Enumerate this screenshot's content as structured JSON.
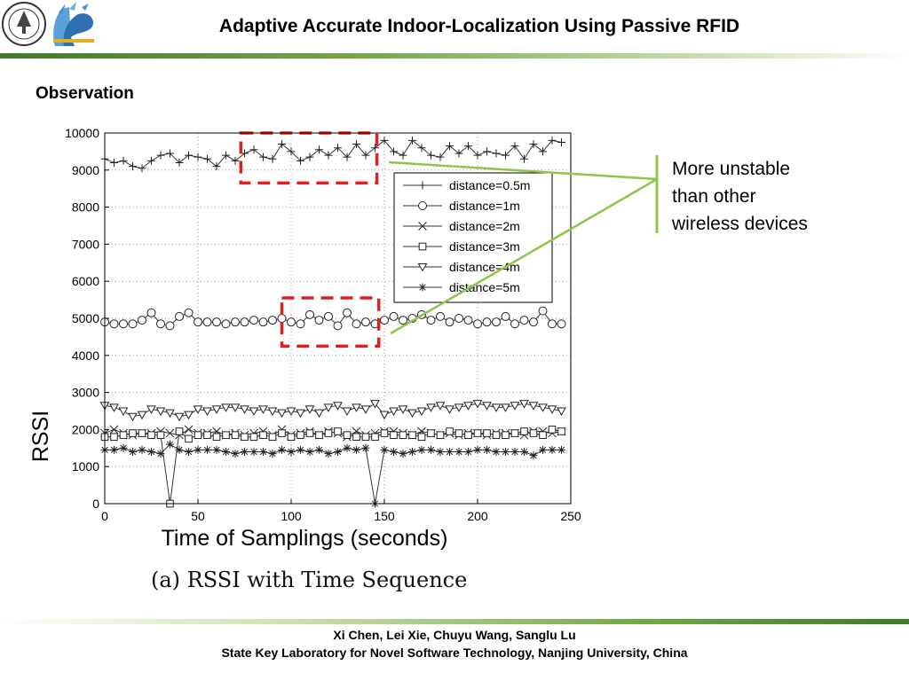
{
  "header": {
    "title": "Adaptive Accurate Indoor-Localization Using Passive RFID"
  },
  "section_title": "Observation",
  "callout": {
    "lines": [
      "More unstable",
      "than other",
      "wireless devices"
    ],
    "color": "#8dc44a"
  },
  "caption": "(a)  RSSI  with  Time  Sequence",
  "footer": {
    "authors": "Xi Chen, Lei Xie, Chuyu Wang, Sanglu Lu",
    "affiliation": "State Key Laboratory for Novel Software Technology,  Nanjing University, China"
  },
  "highlight_color": "#e02020",
  "chart_data": {
    "type": "line",
    "xlabel": "Time of Samplings (seconds)",
    "ylabel": "RSSI",
    "xlim": [
      0,
      250
    ],
    "ylim": [
      0,
      10000
    ],
    "xticks": [
      0,
      50,
      100,
      150,
      200,
      250
    ],
    "yticks": [
      0,
      1000,
      2000,
      3000,
      4000,
      5000,
      6000,
      7000,
      8000,
      9000,
      10000
    ],
    "grid": true,
    "legend_position": "upper-right",
    "x": [
      0,
      5,
      10,
      15,
      20,
      25,
      30,
      35,
      40,
      45,
      50,
      55,
      60,
      65,
      70,
      75,
      80,
      85,
      90,
      95,
      100,
      105,
      110,
      115,
      120,
      125,
      130,
      135,
      140,
      145,
      150,
      155,
      160,
      165,
      170,
      175,
      180,
      185,
      190,
      195,
      200,
      205,
      210,
      215,
      220,
      225,
      230,
      235,
      240,
      245
    ],
    "series": [
      {
        "name": "distance=0.5m",
        "marker": "+",
        "values": [
          9300,
          9200,
          9250,
          9100,
          9050,
          9250,
          9400,
          9450,
          9200,
          9400,
          9350,
          9300,
          9100,
          9400,
          9250,
          9450,
          9550,
          9350,
          9300,
          9700,
          9500,
          9250,
          9350,
          9550,
          9400,
          9600,
          9350,
          9700,
          9400,
          9600,
          9800,
          9500,
          9400,
          9800,
          9600,
          9400,
          9350,
          9650,
          9450,
          9650,
          9400,
          9500,
          9450,
          9400,
          9650,
          9300,
          9700,
          9500,
          9800,
          9750
        ]
      },
      {
        "name": "distance=1m",
        "marker": "o",
        "values": [
          4900,
          4850,
          4850,
          4850,
          4950,
          5150,
          4850,
          4800,
          5050,
          5150,
          4900,
          4900,
          4900,
          4850,
          4900,
          4900,
          4950,
          4900,
          4950,
          5000,
          4900,
          4850,
          5100,
          4950,
          5050,
          4800,
          5150,
          4850,
          4900,
          4850,
          4950,
          5050,
          4950,
          5000,
          5100,
          4950,
          5050,
          4900,
          5000,
          4950,
          4850,
          4900,
          4900,
          5050,
          4850,
          4950,
          4900,
          5200,
          4850,
          4850
        ]
      },
      {
        "name": "distance=2m",
        "marker": "x",
        "values": [
          1900,
          2000,
          1900,
          1850,
          1900,
          1900,
          1950,
          1900,
          1850,
          2000,
          1900,
          1900,
          1950,
          1850,
          1900,
          1850,
          1900,
          1950,
          1850,
          2000,
          1850,
          1900,
          1950,
          1850,
          1950,
          1900,
          1800,
          1950,
          1850,
          1900,
          1950,
          1950,
          1900,
          1850,
          1950,
          1900,
          1850,
          1900,
          1850,
          1900,
          1900,
          1850,
          1900,
          1900,
          1900,
          1850,
          1950,
          1950,
          1900,
          1950
        ]
      },
      {
        "name": "distance=3m",
        "marker": "square",
        "values": [
          1800,
          1800,
          1850,
          1900,
          1900,
          1850,
          1850,
          0,
          1950,
          1750,
          1850,
          1850,
          1800,
          1850,
          1850,
          1800,
          1800,
          1850,
          1800,
          1900,
          1800,
          1850,
          1900,
          1850,
          1900,
          1950,
          1850,
          1800,
          1800,
          1800,
          1900,
          1850,
          1850,
          1850,
          1800,
          1900,
          1850,
          1950,
          1900,
          1850,
          1900,
          1900,
          1850,
          1850,
          1900,
          1950,
          1900,
          1850,
          2000,
          1950
        ]
      },
      {
        "name": "distance=4m",
        "marker": "triangle-down",
        "values": [
          2650,
          2600,
          2500,
          2350,
          2400,
          2550,
          2500,
          2450,
          2350,
          2400,
          2550,
          2500,
          2550,
          2600,
          2600,
          2550,
          2500,
          2550,
          2500,
          2450,
          2500,
          2450,
          2550,
          2450,
          2600,
          2650,
          2500,
          2600,
          2550,
          2700,
          2400,
          2500,
          2550,
          2450,
          2500,
          2600,
          2650,
          2550,
          2600,
          2650,
          2700,
          2650,
          2600,
          2600,
          2650,
          2700,
          2650,
          2600,
          2550,
          2500
        ]
      },
      {
        "name": "distance=5m",
        "marker": "*",
        "values": [
          1450,
          1450,
          1500,
          1400,
          1450,
          1400,
          1350,
          1600,
          1450,
          1400,
          1450,
          1450,
          1450,
          1400,
          1350,
          1400,
          1400,
          1400,
          1350,
          1450,
          1400,
          1450,
          1400,
          1450,
          1350,
          1400,
          1500,
          1450,
          1500,
          0,
          1450,
          1400,
          1350,
          1400,
          1450,
          1450,
          1400,
          1400,
          1400,
          1400,
          1450,
          1450,
          1400,
          1400,
          1400,
          1400,
          1300,
          1450,
          1450,
          1450
        ]
      }
    ],
    "highlight_boxes": [
      {
        "x": [
          73,
          146
        ],
        "y": [
          8650,
          10000
        ]
      },
      {
        "x": [
          95,
          147
        ],
        "y": [
          4250,
          5550
        ]
      }
    ]
  }
}
